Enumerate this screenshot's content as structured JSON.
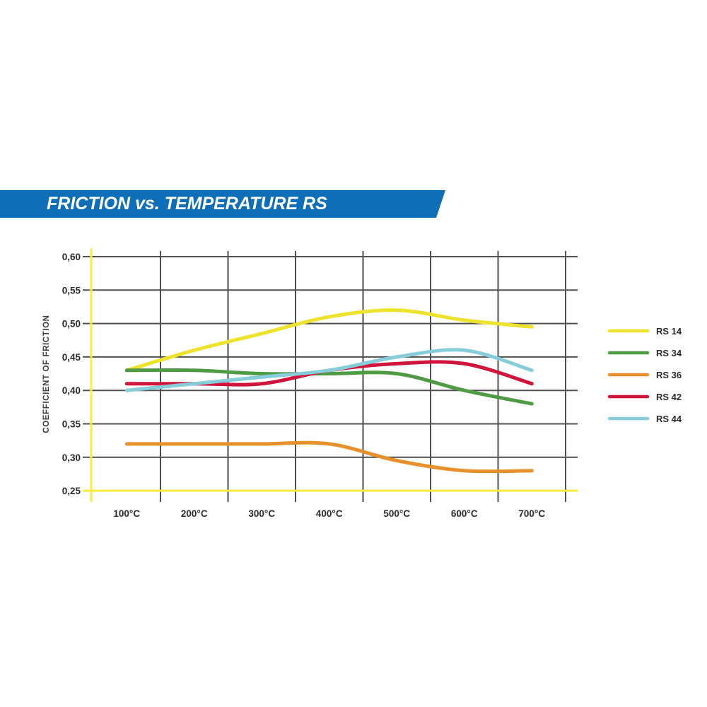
{
  "banner": {
    "title": "FRICTION vs. TEMPERATURE RS",
    "background_color": "#0e6fb8",
    "text_color": "#ffffff"
  },
  "chart_data": {
    "type": "line",
    "title": "FRICTION vs. TEMPERATURE RS",
    "xlabel": "",
    "ylabel": "COEFFICIENT OF FRICTION",
    "categories": [
      "100°C",
      "200°C",
      "300°C",
      "400°C",
      "500°C",
      "600°C",
      "700°C"
    ],
    "x_values_c": [
      100,
      200,
      300,
      400,
      500,
      600,
      700
    ],
    "ylim": [
      0.25,
      0.6
    ],
    "ytick_step": 0.05,
    "ytick_labels": [
      "0,60",
      "0,55",
      "0,50",
      "0,45",
      "0,40",
      "0,35",
      "0,30",
      "0,25"
    ],
    "ytick_values": [
      0.6,
      0.55,
      0.5,
      0.45,
      0.4,
      0.35,
      0.3,
      0.25
    ],
    "grid": true,
    "legend_position": "right",
    "series": [
      {
        "name": "RS 14",
        "color": "#ede32c",
        "values": [
          0.43,
          0.46,
          0.485,
          0.51,
          0.52,
          0.505,
          0.495
        ]
      },
      {
        "name": "RS 34",
        "color": "#4e9b43",
        "values": [
          0.43,
          0.43,
          0.425,
          0.425,
          0.425,
          0.4,
          0.38
        ]
      },
      {
        "name": "RS 36",
        "color": "#e8902b",
        "values": [
          0.32,
          0.32,
          0.32,
          0.32,
          0.295,
          0.28,
          0.28
        ]
      },
      {
        "name": "RS 42",
        "color": "#d0143c",
        "values": [
          0.41,
          0.41,
          0.41,
          0.43,
          0.44,
          0.44,
          0.41
        ]
      },
      {
        "name": "RS 44",
        "color": "#86cdd9",
        "values": [
          0.4,
          0.41,
          0.42,
          0.43,
          0.45,
          0.46,
          0.43
        ]
      }
    ],
    "axis_color": "#f8ec3e",
    "grid_color": "#4f4f4f"
  }
}
